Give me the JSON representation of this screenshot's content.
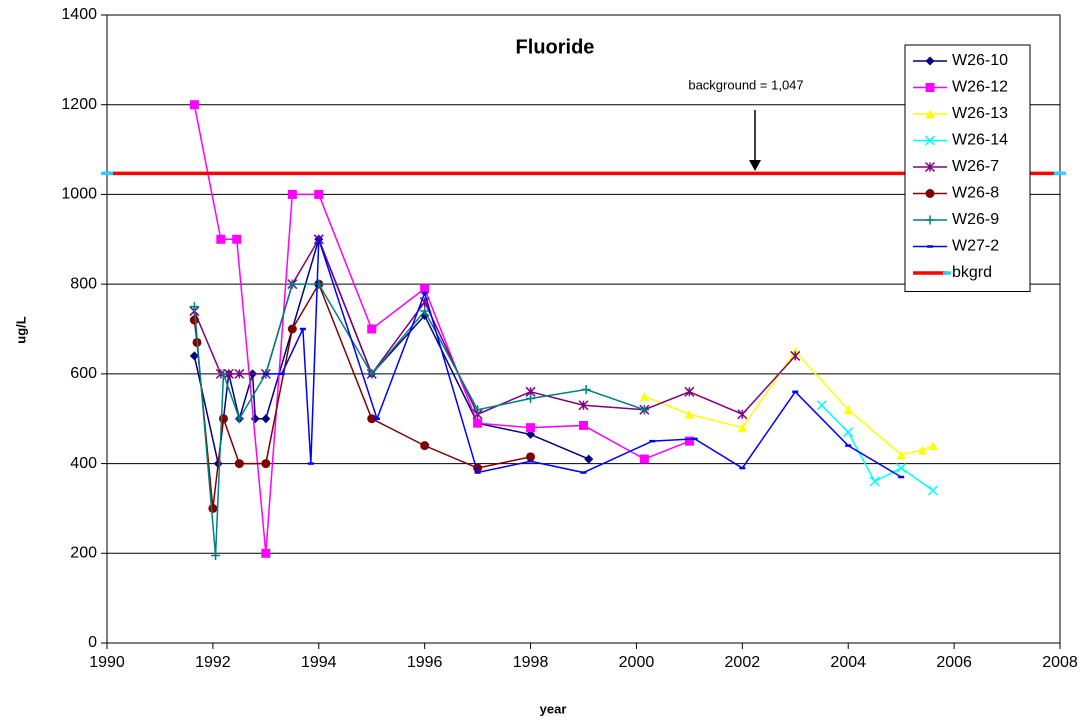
{
  "chart_data": {
    "type": "line",
    "title": "Fluoride",
    "x_label": "year",
    "y_label": "ug/L",
    "annotation": "background = 1,047",
    "xlim": [
      1990,
      2008
    ],
    "xticks": [
      1990,
      1992,
      1994,
      1996,
      1998,
      2000,
      2002,
      2004,
      2006,
      2008
    ],
    "ylim": [
      0,
      1400
    ],
    "yticks": [
      0,
      200,
      400,
      600,
      800,
      1000,
      1200,
      1400
    ],
    "grid": "y",
    "legend": "upper right",
    "series": [
      {
        "name": "W26-10",
        "color": "#000080",
        "marker": "diamond",
        "x": [
          1991.65,
          1992.1,
          1992.3,
          1992.5,
          1992.75,
          1992.8,
          1993,
          1993.5,
          1994,
          1995,
          1996,
          1997,
          1998,
          1999.1
        ],
        "values": [
          640,
          400,
          600,
          500,
          600,
          500,
          500,
          700,
          900,
          600,
          730,
          490,
          465,
          410
        ]
      },
      {
        "name": "W26-12",
        "color": "#ff00ff",
        "marker": "square",
        "x": [
          1991.65,
          1992.15,
          1992.45,
          1993,
          1993.5,
          1994,
          1995,
          1996,
          1997,
          1998,
          1999,
          2000.15,
          2001
        ],
        "values": [
          1200,
          900,
          900,
          200,
          1000,
          1000,
          700,
          790,
          490,
          480,
          485,
          410,
          450
        ]
      },
      {
        "name": "W26-13",
        "color": "#ffff00",
        "marker": "triangle",
        "x": [
          2000.15,
          2001,
          2002,
          2003,
          2004,
          2005,
          2005.4,
          2005.6
        ],
        "values": [
          550,
          510,
          480,
          650,
          520,
          420,
          430,
          440
        ]
      },
      {
        "name": "W26-14",
        "color": "#00ffff",
        "marker": "x",
        "x": [
          2003.5,
          2004,
          2004.5,
          2005,
          2005.6
        ],
        "values": [
          530,
          470,
          360,
          390,
          340
        ]
      },
      {
        "name": "W26-7",
        "color": "#800080",
        "marker": "star",
        "x": [
          1991.65,
          1992.15,
          1992.3,
          1992.5,
          1993,
          1993.5,
          1994,
          1995,
          1996,
          1997,
          1998,
          1999,
          2000.15,
          2001,
          2002,
          2003
        ],
        "values": [
          740,
          600,
          600,
          600,
          600,
          800,
          900,
          600,
          760,
          510,
          560,
          530,
          520,
          560,
          510,
          640
        ]
      },
      {
        "name": "W26-8",
        "color": "#800000",
        "marker": "circle",
        "x": [
          1991.65,
          1991.7,
          1992,
          1992.2,
          1992.5,
          1993,
          1993.5,
          1994,
          1995,
          1996,
          1997,
          1998
        ],
        "values": [
          720,
          670,
          300,
          500,
          400,
          400,
          700,
          800,
          500,
          440,
          390,
          415
        ]
      },
      {
        "name": "W26-9",
        "color": "#008080",
        "marker": "plus",
        "x": [
          1991.65,
          1992.05,
          1992.2,
          1992.5,
          1993,
          1993.5,
          1994,
          1995,
          1996,
          1997,
          1998,
          1999.05,
          2000.15
        ],
        "values": [
          750,
          195,
          600,
          500,
          600,
          800,
          800,
          600,
          740,
          520,
          545,
          565,
          520
        ]
      },
      {
        "name": "W27-2",
        "color": "#0000ff",
        "marker": "dash",
        "x": [
          1993,
          1993.3,
          1993.7,
          1993.85,
          1994,
          1995.1,
          1996,
          1997,
          1998,
          1999,
          2000.3,
          2001.1,
          2002,
          2003,
          2004,
          2005
        ],
        "values": [
          600,
          600,
          700,
          400,
          900,
          500,
          780,
          380,
          405,
          380,
          450,
          455,
          390,
          560,
          440,
          370
        ]
      },
      {
        "name": "bkgrd",
        "color": "#ff0000",
        "marker": "none",
        "x": [
          1990,
          2008
        ],
        "values": [
          1047,
          1047
        ]
      }
    ]
  }
}
